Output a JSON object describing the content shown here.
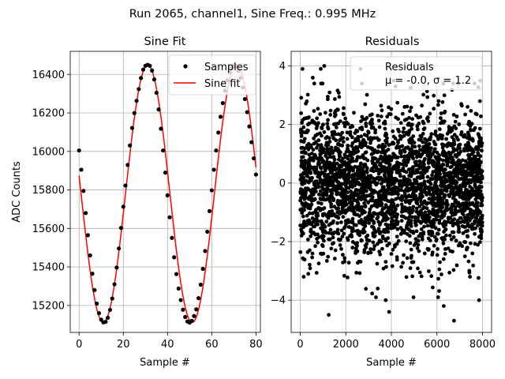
{
  "suptitle": "Run 2065, channel1, Sine Freq.: 0.995 MHz",
  "chart_data": [
    {
      "type": "line",
      "title": "Sine Fit",
      "xlabel": "Sample #",
      "ylabel": "ADC Counts",
      "xlim": [
        -4,
        82
      ],
      "ylim": [
        15060,
        16520
      ],
      "xticks": [
        0,
        20,
        40,
        60,
        80
      ],
      "yticks": [
        15200,
        15400,
        15600,
        15800,
        16000,
        16200,
        16400
      ],
      "grid": true,
      "legend_position": "top-right",
      "series": [
        {
          "name": "Samples",
          "style": "points",
          "color": "#000000",
          "x": [
            0,
            1,
            2,
            3,
            4,
            5,
            6,
            7,
            8,
            9,
            10,
            11,
            12,
            13,
            14,
            15,
            16,
            17,
            18,
            19,
            20,
            21,
            22,
            23,
            24,
            25,
            26,
            27,
            28,
            29,
            30,
            31,
            32,
            33,
            34,
            35,
            36,
            37,
            38,
            39,
            40,
            41,
            42,
            43,
            44,
            45,
            46,
            47,
            48,
            49,
            50,
            51,
            52,
            53,
            54,
            55,
            56,
            57,
            58,
            59,
            60,
            61,
            62,
            63,
            64,
            65,
            66,
            67,
            68,
            69,
            70,
            71,
            72,
            73,
            74,
            75,
            76,
            77,
            78,
            79,
            80
          ],
          "y": [
            16005,
            15905,
            15795,
            15680,
            15565,
            15460,
            15365,
            15280,
            15210,
            15160,
            15126,
            15112,
            15115,
            15136,
            15177,
            15236,
            15310,
            15397,
            15496,
            15603,
            15713,
            15823,
            15930,
            16031,
            16122,
            16199,
            16263,
            16324,
            16381,
            16425,
            16445,
            16450,
            16445,
            16420,
            16374,
            16305,
            16218,
            16118,
            16005,
            15890,
            15772,
            15658,
            15551,
            15450,
            15363,
            15288,
            15228,
            15178,
            15140,
            15117,
            15111,
            15120,
            15145,
            15180,
            15238,
            15308,
            15390,
            15483,
            15583,
            15690,
            15798,
            15905,
            16005,
            16098,
            16180,
            16251,
            16315,
            16370,
            16410,
            16437,
            16447,
            16440,
            16418,
            16381,
            16332,
            16272,
            16204,
            16130,
            16048,
            15964,
            15880
          ]
        },
        {
          "name": "Sine fit",
          "style": "line",
          "color": "#ff0000",
          "offset": 15781,
          "amplitude": 669,
          "period_samples": 40.2,
          "phase_sample_at_zero_crossing_down": 0.9
        }
      ]
    },
    {
      "type": "scatter",
      "title": "Residuals",
      "xlabel": "Sample #",
      "ylabel": "",
      "xlim": [
        -400,
        8400
      ],
      "ylim": [
        -5.1,
        4.5
      ],
      "xticks": [
        0,
        2000,
        4000,
        6000,
        8000
      ],
      "yticks": [
        -4,
        -2,
        0,
        2,
        4
      ],
      "grid": true,
      "legend_position": "top-right",
      "series": [
        {
          "name": "Residuals",
          "color": "#000000",
          "n_points": 8000,
          "mean": 0.0,
          "std": 1.2,
          "x_range": [
            0,
            7999
          ],
          "outliers": [
            [
              1050,
              4.0
            ],
            [
              900,
              3.9
            ],
            [
              2650,
              3.9
            ],
            [
              4100,
              3.5
            ],
            [
              7900,
              3.5
            ],
            [
              100,
              3.9
            ],
            [
              550,
              3.6
            ],
            [
              1250,
              -4.5
            ],
            [
              3900,
              -4.4
            ],
            [
              6750,
              -4.7
            ],
            [
              6300,
              -4.2
            ],
            [
              6050,
              -3.9
            ],
            [
              3750,
              -4.0
            ],
            [
              7850,
              -4.0
            ],
            [
              150,
              -3.2
            ],
            [
              3400,
              -3.6
            ],
            [
              7450,
              -3.2
            ]
          ]
        }
      ],
      "legend_stats": "μ = -0.0, σ = 1.2"
    }
  ]
}
